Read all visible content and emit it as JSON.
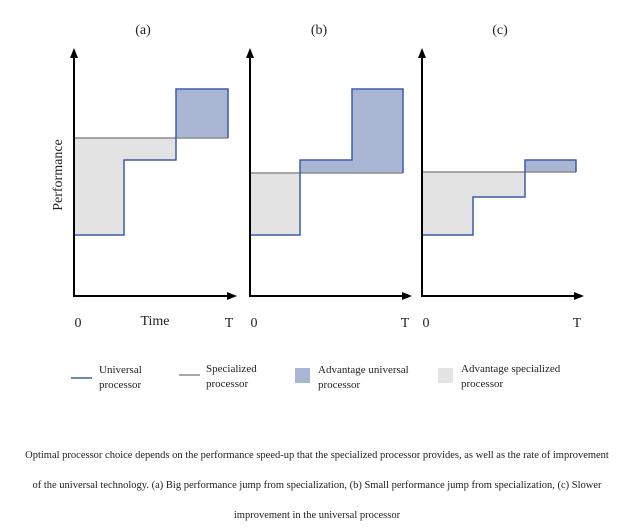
{
  "panels": [
    {
      "label": "(a)",
      "x_origin": "0",
      "x_end": "T",
      "x_axis_label": "Time"
    },
    {
      "label": "(b)",
      "x_origin": "0",
      "x_end": "T"
    },
    {
      "label": "(c)",
      "x_origin": "0",
      "x_end": "T"
    }
  ],
  "y_axis_label": "Performance",
  "legend": {
    "universal": "Universal processor",
    "specialized": "Specialized processor",
    "adv_universal": "Advantage universal processor",
    "adv_specialized": "Advantage specialized processor"
  },
  "colors": {
    "universal_line": "#3a5ea8",
    "specialized_line": "#8c8c8c",
    "adv_universal_fill": "#a8b6d4",
    "adv_specialized_fill": "#e3e3e3",
    "axis": "#000000"
  },
  "caption": "Optimal processor choice depends on the performance speed-up that the specialized processor provides, as well as the rate of improvement of the universal technology. (a) Big performance jump from specialization, (b) Small performance jump from specialization, (c) Slower improvement in the universal processor"
}
